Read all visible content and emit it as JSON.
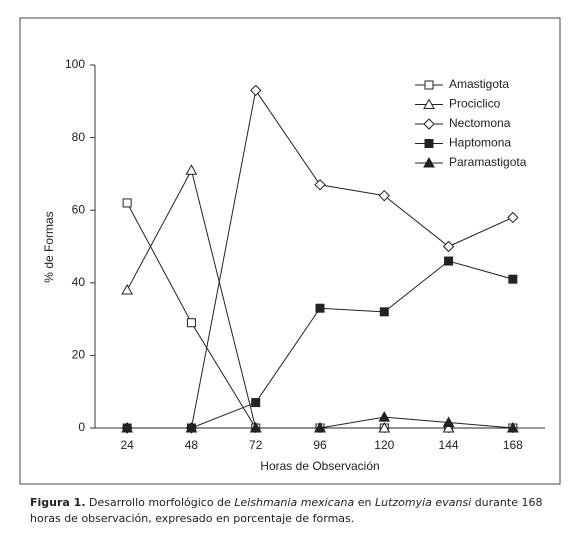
{
  "chart_data": {
    "type": "line",
    "x_label": "Horas de Observación",
    "y_label": "% de Formas",
    "x": [
      24,
      48,
      72,
      96,
      120,
      144,
      168
    ],
    "xlim": [
      12,
      180
    ],
    "xticks": [
      24,
      48,
      72,
      96,
      120,
      144,
      168
    ],
    "ylim": [
      0,
      100
    ],
    "yticks": [
      0,
      20,
      40,
      60,
      80,
      100
    ],
    "legend": "upper right",
    "series": [
      {
        "name": "Amastigota",
        "color": "#222222",
        "marker": "square",
        "filled": false,
        "values": [
          62,
          29,
          0,
          0,
          0,
          0,
          0
        ]
      },
      {
        "name": "Prociclico",
        "color": "#222222",
        "marker": "triangle",
        "filled": false,
        "values": [
          38,
          71,
          0,
          0,
          0,
          0,
          0
        ]
      },
      {
        "name": "Nectomona",
        "color": "#222222",
        "marker": "diamond",
        "filled": false,
        "values": [
          0,
          0,
          93,
          67,
          64,
          50,
          58
        ]
      },
      {
        "name": "Haptomona",
        "color": "#222222",
        "marker": "square",
        "filled": true,
        "values": [
          0,
          0,
          7,
          33,
          32,
          46,
          41
        ]
      },
      {
        "name": "Paramastigota",
        "color": "#222222",
        "marker": "triangle",
        "filled": true,
        "values": [
          0,
          0,
          0,
          0,
          3,
          1.5,
          0
        ]
      }
    ]
  },
  "caption": [
    "Figura 1.",
    " Desarrollo morfológico de ",
    "Leishmania mexicana",
    " en ",
    "Lutzomyia evansi",
    " durante 168 horas de observación, expresado en porcentaje de formas."
  ]
}
